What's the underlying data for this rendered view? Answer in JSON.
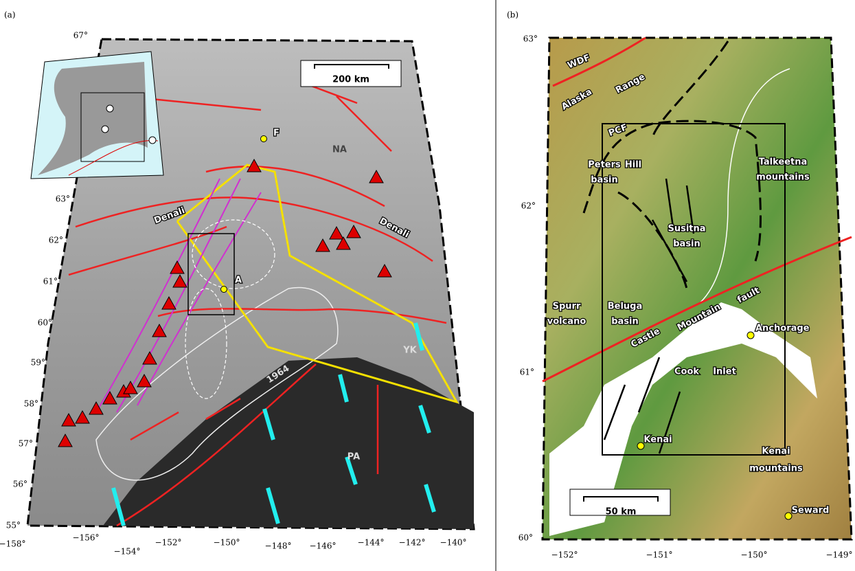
{
  "panel_a": {
    "label": "(a)",
    "lat_labels": [
      "67°",
      "63°",
      "62°",
      "61°",
      "60°",
      "59°",
      "58°",
      "57°",
      "56°",
      "55°"
    ],
    "lon_labels": [
      "−158°",
      "−156°",
      "−154°",
      "−152°",
      "−150°",
      "−148°",
      "−146°",
      "−144°",
      "−142°",
      "−140°"
    ],
    "scale_bar": "200 km",
    "places": [
      "F",
      "NA",
      "Denali",
      "Denali",
      "A",
      "YK",
      "1964",
      "PA"
    ]
  },
  "panel_b": {
    "label": "(b)",
    "lat_labels": [
      "63°",
      "62°",
      "61°",
      "60°"
    ],
    "lon_labels": [
      "−152°",
      "−151°",
      "−150°",
      "−149°"
    ],
    "scale_bar": "50 km",
    "places": [
      "WDF",
      "Alaska",
      "Range",
      "PCF",
      "Peters",
      "Hill",
      "basin",
      "Talkeetna",
      "mountains",
      "Susitna",
      "basin",
      "Spurr",
      "volcano",
      "Beluga",
      "basin",
      "Castle",
      "Mountain",
      "fault",
      "Anchorage",
      "Cook",
      "Inlet",
      "Kenai",
      "Kenai",
      "mountains",
      "Seward"
    ]
  }
}
